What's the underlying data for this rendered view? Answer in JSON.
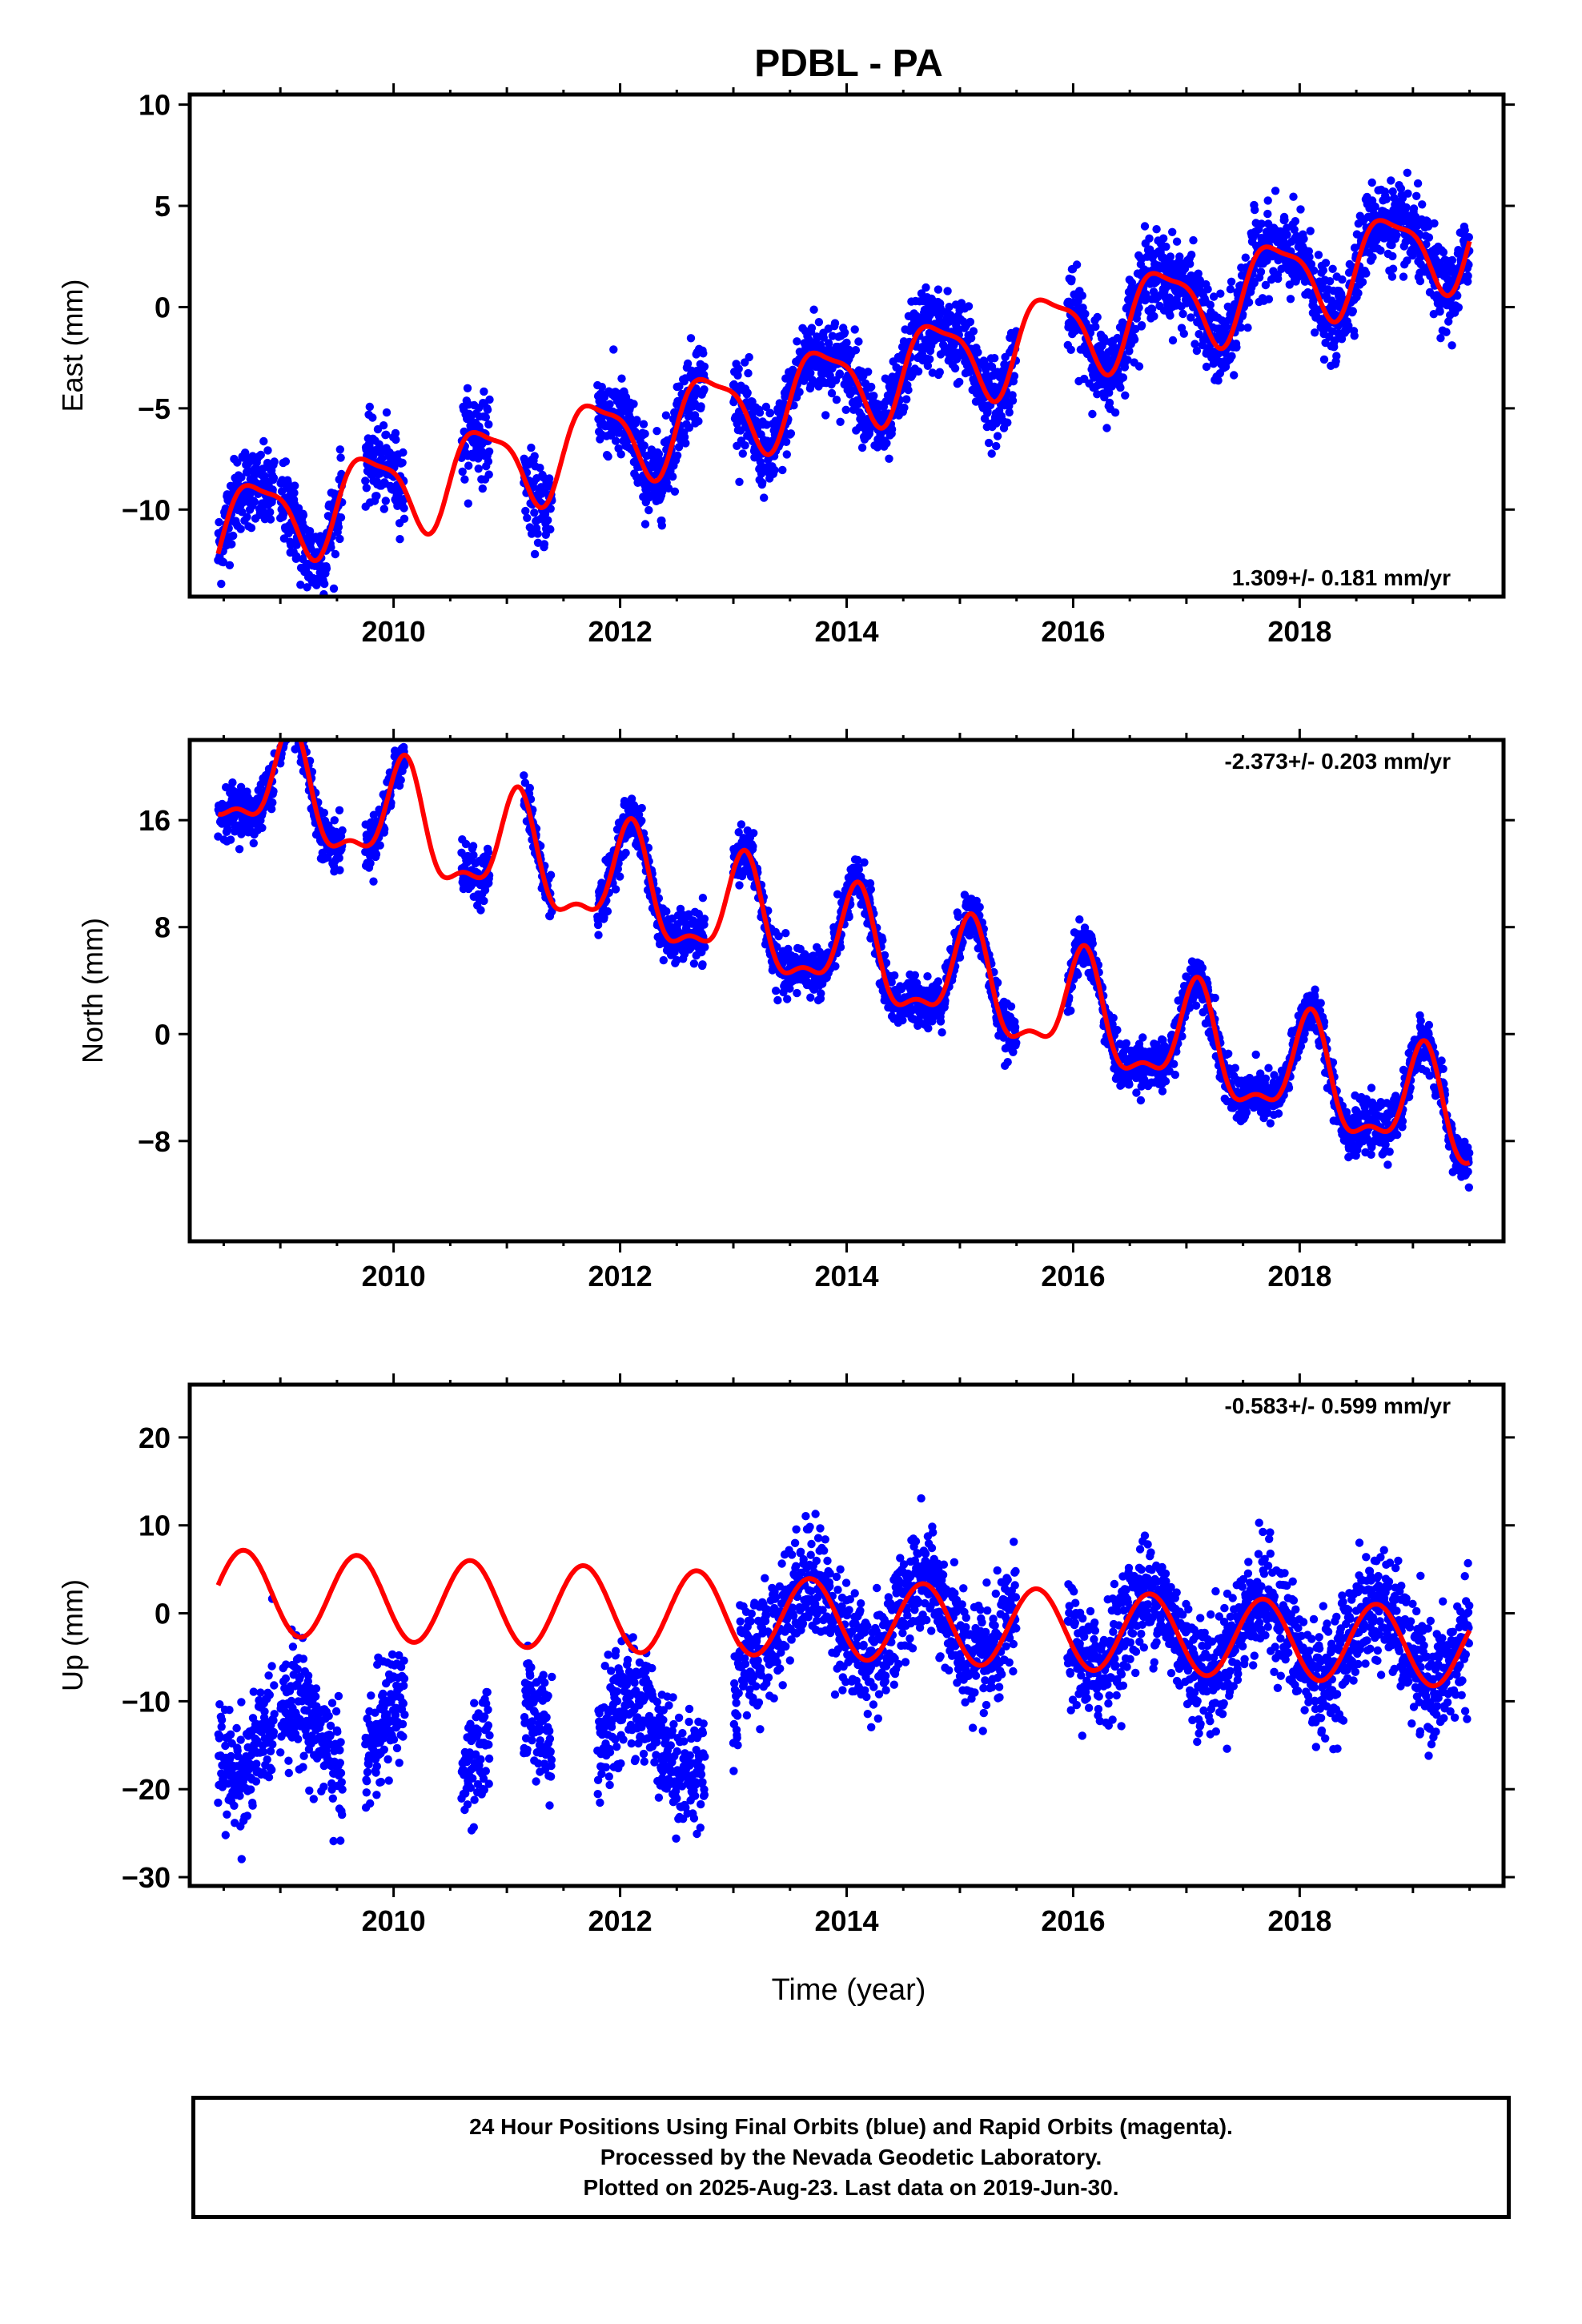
{
  "title": "PDBL - PA",
  "xlabel": "Time (year)",
  "footer": {
    "line1": "24 Hour Positions Using Final Orbits (blue) and Rapid Orbits (magenta).",
    "line2": "Processed by the Nevada Geodetic Laboratory.",
    "line3": "Plotted on 2025-Aug-23. Last data on 2019-Jun-30."
  },
  "colors": {
    "data": "#0000ff",
    "model": "#ff0000",
    "axis": "#000000"
  },
  "chart_data": [
    {
      "type": "scatter",
      "name": "east",
      "ylabel": "East (mm)",
      "rate_label": "1.309+/- 0.181 mm/yr",
      "rate_position": "bottom-right",
      "xlim": [
        2008.2,
        2019.8
      ],
      "ylim": [
        -14.3,
        10.5
      ],
      "xticks": [
        2010,
        2012,
        2014,
        2016,
        2018
      ],
      "yticks": [
        -10,
        -5,
        0,
        5,
        10
      ],
      "data_segments": [
        [
          2008.45,
          2008.95
        ],
        [
          2009.0,
          2009.55
        ],
        [
          2009.75,
          2010.1
        ],
        [
          2010.6,
          2010.85
        ],
        [
          2011.15,
          2011.4
        ],
        [
          2011.8,
          2012.75
        ],
        [
          2013.0,
          2015.5
        ],
        [
          2015.95,
          2019.5
        ]
      ],
      "model": {
        "x0": 2008.45,
        "x1": 2019.5,
        "offset": -11.0,
        "rate": 1.309,
        "annual_amp": 2.1,
        "annual_phase": 2.9,
        "semiannual_amp": 0.6,
        "semiannual_phase": 0.5
      },
      "scatter_sigma": 1.0
    },
    {
      "type": "scatter",
      "name": "north",
      "ylabel": "North (mm)",
      "rate_label": "-2.373+/- 0.203 mm/yr",
      "rate_position": "top-right",
      "xlim": [
        2008.2,
        2019.8
      ],
      "ylim": [
        -15.5,
        22.0
      ],
      "xticks": [
        2010,
        2012,
        2014,
        2016,
        2018
      ],
      "yticks": [
        -8,
        0,
        8,
        16
      ],
      "data_segments": [
        [
          2008.45,
          2008.95
        ],
        [
          2009.0,
          2009.55
        ],
        [
          2009.75,
          2010.1
        ],
        [
          2010.6,
          2010.85
        ],
        [
          2011.15,
          2011.4
        ],
        [
          2011.8,
          2012.75
        ],
        [
          2013.0,
          2015.5
        ],
        [
          2015.95,
          2019.5
        ]
      ],
      "model": {
        "x0": 2008.45,
        "x1": 2019.5,
        "offset": 19.5,
        "rate": -2.373,
        "annual_amp": 3.8,
        "annual_phase": 1.0,
        "semiannual_amp": 1.5,
        "semiannual_phase": 0.2
      },
      "scatter_sigma": 0.9
    },
    {
      "type": "scatter",
      "name": "up",
      "ylabel": "Up (mm)",
      "rate_label": "-0.583+/- 0.599 mm/yr",
      "rate_position": "top-right",
      "xlim": [
        2008.2,
        2019.8
      ],
      "ylim": [
        -31.0,
        26.0
      ],
      "xticks": [
        2010,
        2012,
        2014,
        2016,
        2018
      ],
      "yticks": [
        -30,
        -20,
        -10,
        0,
        10,
        20
      ],
      "data_segments": [
        [
          2008.45,
          2008.95
        ],
        [
          2009.0,
          2009.55
        ],
        [
          2009.75,
          2010.1
        ],
        [
          2010.6,
          2010.85
        ],
        [
          2011.15,
          2011.4
        ],
        [
          2011.8,
          2012.75
        ],
        [
          2013.0,
          2015.5
        ],
        [
          2015.95,
          2019.5
        ]
      ],
      "model": {
        "x0": 2008.45,
        "x1": 2019.5,
        "offset": 2.5,
        "rate": -0.583,
        "annual_amp": 4.8,
        "annual_phase": 3.6,
        "semiannual_amp": 0.0,
        "semiannual_phase": 0.0
      },
      "early_offset_until": 2013.05,
      "early_offset": -14.0,
      "late_annual_amp": 4.5,
      "scatter_sigma": 3.2
    }
  ]
}
